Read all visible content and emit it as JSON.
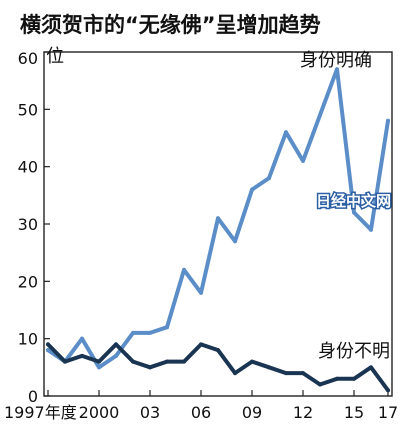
{
  "title": "横须贺市的“无缘佛”呈增加趋势",
  "watermark": "日经中文网",
  "chart_data": {
    "type": "line",
    "title": "横须贺市的“无缘佛”呈增加趋势",
    "xlabel": "",
    "ylabel": "位",
    "ylim": [
      0,
      60
    ],
    "xlim": [
      1997,
      2017
    ],
    "yticks": [
      0,
      10,
      20,
      30,
      40,
      50,
      60
    ],
    "xtick_labels": [
      "1997年度",
      "2000",
      "03",
      "06",
      "09",
      "12",
      "15",
      "17"
    ],
    "xtick_values": [
      1997,
      2000,
      2003,
      2006,
      2009,
      2012,
      2015,
      2017
    ],
    "grid": false,
    "x": [
      1997,
      1998,
      1999,
      2000,
      2001,
      2002,
      2003,
      2004,
      2005,
      2006,
      2007,
      2008,
      2009,
      2010,
      2011,
      2012,
      2013,
      2014,
      2015,
      2016,
      2017
    ],
    "series": [
      {
        "name": "身份明确",
        "color": "#5b8ec8",
        "values": [
          8,
          6,
          10,
          5,
          7,
          11,
          11,
          12,
          22,
          18,
          31,
          27,
          36,
          38,
          46,
          41,
          49,
          57,
          32,
          29,
          48
        ]
      },
      {
        "name": "身份不明",
        "color": "#1a3552",
        "values": [
          9,
          6,
          7,
          6,
          9,
          6,
          5,
          6,
          6,
          9,
          8,
          4,
          6,
          5,
          4,
          4,
          2,
          3,
          3,
          5,
          1
        ]
      }
    ]
  }
}
